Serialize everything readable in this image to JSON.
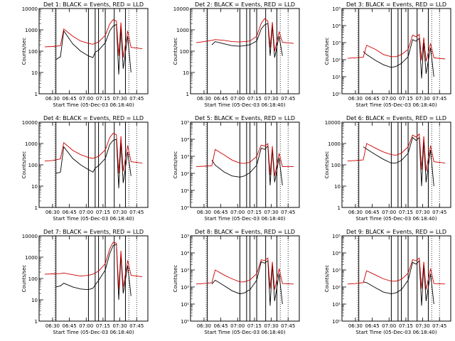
{
  "figure": {
    "xlabel": "Start Time (05-Dec-03 06:18:40)",
    "xticks": [
      "06:30",
      "06:45",
      "07:00",
      "07:15",
      "07:30",
      "07:45"
    ],
    "ylabel": "Counts/sec"
  },
  "chart_data": [
    {
      "type": "line",
      "title": "Det 1: BLACK = Events, RED = LLD",
      "yscale": "log",
      "ylim": [
        1,
        10000
      ],
      "ytick_style": "decimal",
      "xlabel": "Start Time (05-Dec-03 06:18:40)",
      "ylabel": "Counts/sec",
      "series": [
        {
          "color": "#000000",
          "x": [
            "06:33",
            "06:37",
            "06:40",
            "06:48",
            "06:55",
            "07:02",
            "07:06",
            "07:08",
            "07:11",
            "07:17",
            "07:21",
            "07:24",
            "07:27",
            "07:29",
            "07:31",
            "07:33",
            "07:37",
            "07:40"
          ],
          "y": [
            40,
            55,
            900,
            220,
            100,
            60,
            50,
            90,
            110,
            250,
            900,
            1500,
            1800,
            8,
            1200,
            15,
            500,
            10
          ]
        },
        {
          "color": "#cc0000",
          "x": [
            "06:23",
            "06:30",
            "06:37",
            "06:40",
            "06:48",
            "06:55",
            "07:02",
            "07:06",
            "07:11",
            "07:17",
            "07:21",
            "07:24",
            "07:27",
            "07:29",
            "07:31",
            "07:33",
            "07:37",
            "07:40",
            "07:50"
          ],
          "y": [
            160,
            165,
            180,
            1100,
            500,
            300,
            230,
            210,
            270,
            550,
            1900,
            3000,
            2600,
            60,
            2200,
            50,
            900,
            150,
            130
          ]
        }
      ]
    },
    {
      "type": "line",
      "title": "Det 2: BLACK = Events, RED = LLD",
      "yscale": "log",
      "ylim": [
        1,
        10000
      ],
      "ytick_style": "decimal",
      "xlabel": "Start Time (05-Dec-03 06:18:40)",
      "ylabel": "Counts/sec",
      "series": [
        {
          "color": "#000000",
          "x": [
            "06:37",
            "06:40",
            "06:48",
            "06:55",
            "07:02",
            "07:06",
            "07:11",
            "07:17",
            "07:21",
            "07:24",
            "07:27",
            "07:29",
            "07:31",
            "07:33",
            "07:37",
            "07:40"
          ],
          "y": [
            200,
            280,
            220,
            180,
            170,
            180,
            200,
            300,
            1100,
            1700,
            2000,
            60,
            1500,
            50,
            500,
            60
          ]
        },
        {
          "color": "#cc0000",
          "x": [
            "06:23",
            "06:30",
            "06:37",
            "06:40",
            "06:48",
            "06:55",
            "07:02",
            "07:06",
            "07:11",
            "07:17",
            "07:21",
            "07:24",
            "07:27",
            "07:29",
            "07:31",
            "07:33",
            "07:37",
            "07:40",
            "07:50"
          ],
          "y": [
            250,
            280,
            320,
            350,
            320,
            280,
            270,
            280,
            300,
            500,
            2000,
            3300,
            2600,
            150,
            2300,
            100,
            800,
            260,
            230
          ]
        }
      ]
    },
    {
      "type": "line",
      "title": "Det 3: BLACK = Events, RED = LLD",
      "yscale": "log",
      "ylim": [
        1,
        100000
      ],
      "ytick_style": "power",
      "xlabel": "Start Time (05-Dec-03 06:18:40)",
      "ylabel": "Counts/sec",
      "series": [
        {
          "color": "#000000",
          "x": [
            "06:37",
            "06:40",
            "06:48",
            "06:55",
            "07:02",
            "07:06",
            "07:11",
            "07:17",
            "07:21",
            "07:24",
            "07:27",
            "07:29",
            "07:31",
            "07:33",
            "07:37",
            "07:40"
          ],
          "y": [
            300,
            200,
            90,
            50,
            35,
            40,
            60,
            150,
            1500,
            1200,
            1800,
            8,
            1000,
            15,
            500,
            10
          ]
        },
        {
          "color": "#cc0000",
          "x": [
            "06:23",
            "06:30",
            "06:37",
            "06:40",
            "06:48",
            "06:55",
            "07:02",
            "07:06",
            "07:11",
            "07:17",
            "07:21",
            "07:24",
            "07:27",
            "07:29",
            "07:31",
            "07:33",
            "07:37",
            "07:40",
            "07:50"
          ],
          "y": [
            120,
            130,
            140,
            700,
            400,
            200,
            150,
            150,
            200,
            400,
            2800,
            2200,
            3000,
            90,
            2000,
            80,
            900,
            130,
            110
          ]
        }
      ]
    },
    {
      "type": "line",
      "title": "Det 4: BLACK = Events, RED = LLD",
      "yscale": "log",
      "ylim": [
        1,
        10000
      ],
      "ytick_style": "decimal",
      "xlabel": "Start Time (05-Dec-03 06:18:40)",
      "ylabel": "Counts/sec",
      "series": [
        {
          "color": "#000000",
          "x": [
            "06:33",
            "06:37",
            "06:40",
            "06:48",
            "06:55",
            "07:02",
            "07:06",
            "07:08",
            "07:11",
            "07:17",
            "07:21",
            "07:24",
            "07:27",
            "07:29",
            "07:31",
            "07:33",
            "07:37",
            "07:40"
          ],
          "y": [
            40,
            45,
            700,
            200,
            100,
            60,
            45,
            70,
            90,
            200,
            900,
            1400,
            1600,
            8,
            1100,
            14,
            400,
            30
          ]
        },
        {
          "color": "#cc0000",
          "x": [
            "06:23",
            "06:30",
            "06:37",
            "06:40",
            "06:48",
            "06:55",
            "07:02",
            "07:06",
            "07:11",
            "07:17",
            "07:21",
            "07:24",
            "07:27",
            "07:29",
            "07:31",
            "07:33",
            "07:37",
            "07:40",
            "07:50"
          ],
          "y": [
            150,
            160,
            190,
            1100,
            480,
            300,
            220,
            200,
            250,
            500,
            1900,
            3000,
            2600,
            40,
            2200,
            50,
            800,
            140,
            120
          ]
        }
      ]
    },
    {
      "type": "line",
      "title": "Det 5: BLACK = Events, RED = LLD",
      "yscale": "log",
      "ylim": [
        1,
        100000
      ],
      "ytick_style": "power",
      "xlabel": "Start Time (05-Dec-03 06:18:40)",
      "ylabel": "Counts/sec",
      "series": [
        {
          "color": "#000000",
          "x": [
            "06:37",
            "06:40",
            "06:48",
            "06:55",
            "07:02",
            "07:06",
            "07:11",
            "07:17",
            "07:21",
            "07:24",
            "07:27",
            "07:29",
            "07:31",
            "07:33",
            "07:37",
            "07:40"
          ],
          "y": [
            600,
            300,
            120,
            70,
            60,
            70,
            110,
            300,
            3000,
            2500,
            4000,
            20,
            2500,
            30,
            800,
            20
          ]
        },
        {
          "color": "#cc0000",
          "x": [
            "06:23",
            "06:30",
            "06:37",
            "06:40",
            "06:48",
            "06:55",
            "07:02",
            "07:06",
            "07:11",
            "07:17",
            "07:21",
            "07:24",
            "07:27",
            "07:29",
            "07:31",
            "07:33",
            "07:37",
            "07:40",
            "07:50"
          ],
          "y": [
            250,
            260,
            280,
            2500,
            1200,
            600,
            400,
            380,
            450,
            1000,
            4500,
            4000,
            5500,
            80,
            4000,
            70,
            1500,
            250,
            250
          ]
        }
      ]
    },
    {
      "type": "line",
      "title": "Det 6: BLACK = Events, RED = LLD",
      "yscale": "log",
      "ylim": [
        1,
        10000
      ],
      "ytick_style": "decimal",
      "xlabel": "Start Time (05-Dec-03 06:18:40)",
      "ylabel": "Counts/sec",
      "series": [
        {
          "color": "#000000",
          "x": [
            "06:37",
            "06:40",
            "06:48",
            "06:55",
            "07:02",
            "07:06",
            "07:11",
            "07:17",
            "07:21",
            "07:24",
            "07:27",
            "07:29",
            "07:31",
            "07:33",
            "07:37",
            "07:40"
          ],
          "y": [
            700,
            550,
            300,
            180,
            120,
            120,
            160,
            350,
            1900,
            1400,
            1900,
            10,
            1300,
            15,
            500,
            10
          ]
        },
        {
          "color": "#cc0000",
          "x": [
            "06:23",
            "06:30",
            "06:37",
            "06:40",
            "06:48",
            "06:55",
            "07:02",
            "07:06",
            "07:11",
            "07:17",
            "07:21",
            "07:24",
            "07:27",
            "07:29",
            "07:31",
            "07:33",
            "07:37",
            "07:40",
            "07:50"
          ],
          "y": [
            150,
            160,
            170,
            1000,
            600,
            400,
            300,
            280,
            350,
            700,
            2500,
            2000,
            2800,
            60,
            2200,
            50,
            800,
            140,
            120
          ]
        }
      ]
    },
    {
      "type": "line",
      "title": "Det 7: BLACK = Events, RED = LLD",
      "yscale": "log",
      "ylim": [
        1,
        10000
      ],
      "ytick_style": "decimal",
      "xlabel": "Start Time (05-Dec-03 06:18:40)",
      "ylabel": "Counts/sec",
      "series": [
        {
          "color": "#000000",
          "x": [
            "06:33",
            "06:37",
            "06:40",
            "06:48",
            "06:55",
            "07:02",
            "07:06",
            "07:08",
            "07:11",
            "07:17",
            "07:21",
            "07:24",
            "07:27",
            "07:29",
            "07:31",
            "07:33",
            "07:37",
            "07:40"
          ],
          "y": [
            40,
            45,
            60,
            40,
            32,
            30,
            35,
            50,
            80,
            250,
            1500,
            3500,
            4000,
            10,
            1200,
            20,
            400,
            15
          ]
        },
        {
          "color": "#cc0000",
          "x": [
            "06:23",
            "06:30",
            "06:37",
            "06:40",
            "06:48",
            "06:55",
            "07:02",
            "07:06",
            "07:11",
            "07:17",
            "07:21",
            "07:24",
            "07:27",
            "07:29",
            "07:31",
            "07:33",
            "07:37",
            "07:40",
            "07:50"
          ],
          "y": [
            160,
            165,
            170,
            180,
            150,
            130,
            140,
            160,
            220,
            500,
            2500,
            5000,
            4500,
            30,
            2000,
            40,
            700,
            140,
            120
          ]
        }
      ]
    },
    {
      "type": "line",
      "title": "Det 8: BLACK = Events, RED = LLD",
      "yscale": "log",
      "ylim": [
        1,
        100000
      ],
      "ytick_style": "power",
      "xlabel": "Start Time (05-Dec-03 06:18:40)",
      "ylabel": "Counts/sec",
      "series": [
        {
          "color": "#000000",
          "x": [
            "06:37",
            "06:40",
            "06:48",
            "06:55",
            "07:02",
            "07:06",
            "07:11",
            "07:17",
            "07:21",
            "07:24",
            "07:27",
            "07:29",
            "07:31",
            "07:33",
            "07:37",
            "07:40"
          ],
          "y": [
            150,
            250,
            120,
            60,
            40,
            45,
            70,
            250,
            3000,
            2500,
            3500,
            8,
            2000,
            15,
            600,
            10
          ]
        },
        {
          "color": "#cc0000",
          "x": [
            "06:23",
            "06:30",
            "06:37",
            "06:40",
            "06:48",
            "06:55",
            "07:02",
            "07:06",
            "07:11",
            "07:17",
            "07:21",
            "07:24",
            "07:27",
            "07:29",
            "07:31",
            "07:33",
            "07:37",
            "07:40",
            "07:50"
          ],
          "y": [
            150,
            160,
            180,
            1000,
            500,
            300,
            200,
            200,
            260,
            600,
            4000,
            3500,
            5000,
            80,
            3000,
            70,
            1200,
            160,
            150
          ]
        }
      ]
    },
    {
      "type": "line",
      "title": "Det 9: BLACK = Events, RED = LLD",
      "yscale": "log",
      "ylim": [
        1,
        100000
      ],
      "ytick_style": "power",
      "xlabel": "Start Time (05-Dec-03 06:18:40)",
      "ylabel": "Counts/sec",
      "series": [
        {
          "color": "#000000",
          "x": [
            "06:37",
            "06:40",
            "06:48",
            "06:55",
            "07:02",
            "07:06",
            "07:11",
            "07:17",
            "07:21",
            "07:24",
            "07:27",
            "07:29",
            "07:31",
            "07:33",
            "07:37",
            "07:40"
          ],
          "y": [
            200,
            180,
            90,
            50,
            40,
            45,
            70,
            250,
            2800,
            2200,
            3500,
            8,
            2000,
            15,
            600,
            10
          ]
        },
        {
          "color": "#cc0000",
          "x": [
            "06:23",
            "06:30",
            "06:37",
            "06:40",
            "06:48",
            "06:55",
            "07:02",
            "07:06",
            "07:11",
            "07:17",
            "07:21",
            "07:24",
            "07:27",
            "07:29",
            "07:31",
            "07:33",
            "07:37",
            "07:40",
            "07:50"
          ],
          "y": [
            150,
            160,
            180,
            900,
            500,
            300,
            220,
            220,
            280,
            650,
            4000,
            3500,
            5000,
            80,
            3000,
            70,
            1200,
            160,
            150
          ]
        }
      ]
    }
  ],
  "event_markers": {
    "times": [
      "06:33",
      "07:02",
      "07:08",
      "07:11",
      "07:17",
      "07:25",
      "07:35"
    ],
    "dotted_times": [
      "06:32",
      "07:38",
      "07:45"
    ]
  }
}
